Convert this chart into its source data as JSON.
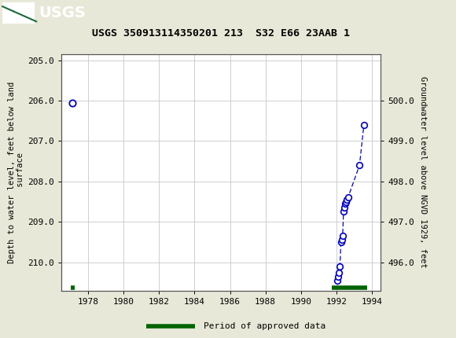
{
  "title": "USGS 350913114350201 213  S32 E66 23AAB 1",
  "ylabel_left": "Depth to water level, feet below land\n surface",
  "ylabel_right": "Groundwater level above NGVD 1929, feet",
  "xlim": [
    1976.5,
    1994.5
  ],
  "ylim_left": [
    210.7,
    204.85
  ],
  "ylim_right": [
    495.3,
    501.15
  ],
  "xticks": [
    1978,
    1980,
    1982,
    1984,
    1986,
    1988,
    1990,
    1992,
    1994
  ],
  "yticks_left": [
    205.0,
    206.0,
    207.0,
    208.0,
    209.0,
    210.0
  ],
  "yticks_right": [
    500.0,
    499.0,
    498.0,
    497.0,
    496.0
  ],
  "solo_x": [
    1977.1
  ],
  "solo_y": [
    206.05
  ],
  "cluster_x": [
    1992.05,
    1992.1,
    1992.15,
    1992.2,
    1992.25,
    1992.3,
    1992.35,
    1992.4,
    1992.45,
    1992.5,
    1992.55,
    1992.6,
    1992.65,
    1993.3,
    1993.55
  ],
  "cluster_y": [
    210.45,
    210.35,
    210.25,
    210.1,
    209.5,
    209.45,
    209.35,
    208.75,
    208.65,
    208.55,
    208.5,
    208.45,
    208.4,
    207.6,
    206.6
  ],
  "approved_bar_y": 210.63,
  "approved_bar1_x1": 1977.0,
  "approved_bar1_x2": 1977.25,
  "approved_bar2_x1": 1991.75,
  "approved_bar2_x2": 1993.75,
  "point_color": "#0000cc",
  "line_color": "#0000cc",
  "approved_color": "#006400",
  "bg_color": "#e8e8d8",
  "plot_bg_color": "#ffffff",
  "header_color": "#1a6b3a",
  "grid_color": "#c8c8c8",
  "fig_width": 5.8,
  "fig_height": 4.3,
  "dpi": 100
}
